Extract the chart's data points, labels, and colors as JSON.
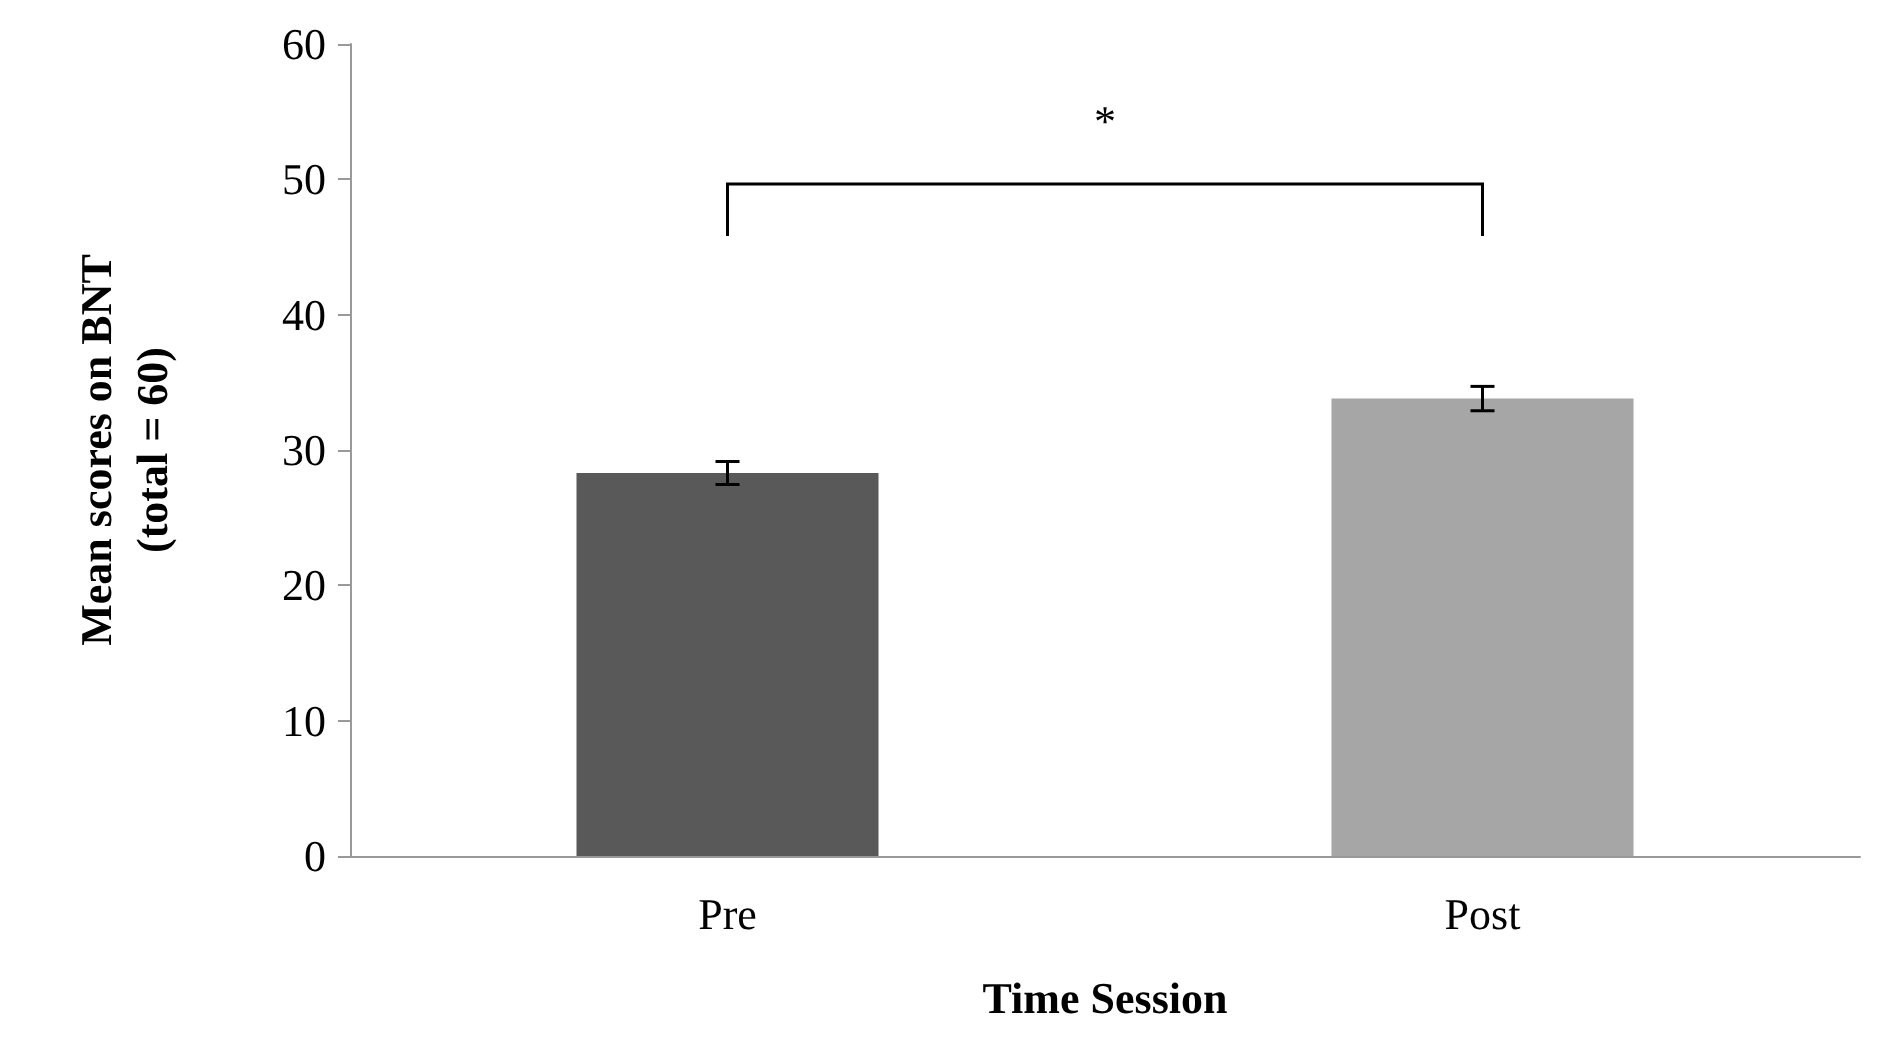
{
  "chart_data": {
    "type": "bar",
    "xlabel": "Time Session",
    "ylabel": "Mean scores on BNT\n(total = 60)",
    "categories": [
      "Pre",
      "Post"
    ],
    "values": [
      28.3,
      33.8
    ],
    "colors": [
      "#595959",
      "#a6a6a6"
    ],
    "errors": [
      0.85,
      0.9
    ],
    "ylim": [
      0,
      60
    ],
    "yticks": [
      0,
      10,
      20,
      30,
      40,
      50,
      60
    ],
    "grid": false,
    "annotations": [
      "*"
    ]
  }
}
